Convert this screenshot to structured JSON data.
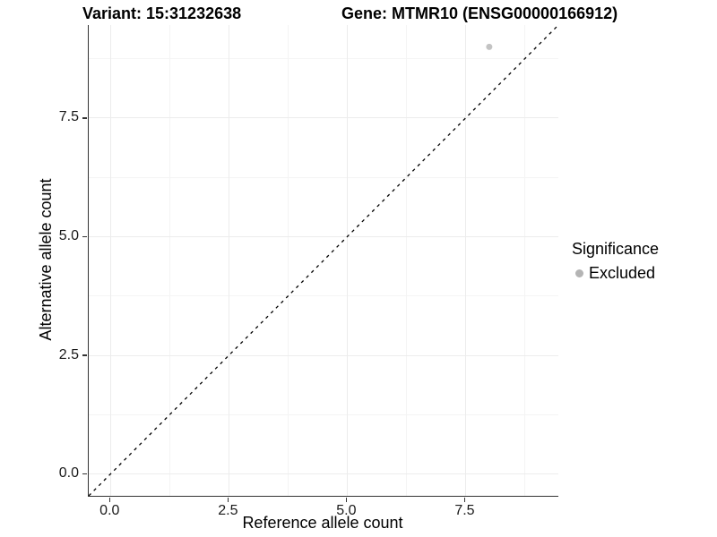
{
  "titles": {
    "variant": "Variant: 15:31232638",
    "gene": "Gene: MTMR10 (ENSG00000166912)"
  },
  "chart_data": {
    "type": "scatter",
    "xlabel": "Reference allele count",
    "ylabel": "Alternative allele count",
    "xlim": [
      -0.46,
      9.46
    ],
    "ylim": [
      -0.46,
      9.46
    ],
    "x_ticks": {
      "values": [
        0,
        2.5,
        5,
        7.5
      ],
      "labels": [
        "0.0",
        "2.5",
        "5.0",
        "7.5"
      ]
    },
    "y_ticks": {
      "values": [
        0,
        2.5,
        5,
        7.5
      ],
      "labels": [
        "0.0",
        "2.5",
        "5.0",
        "7.5"
      ]
    },
    "x_minor_ticks": [
      1.25,
      3.75,
      6.25,
      8.75
    ],
    "y_minor_ticks": [
      1.25,
      3.75,
      6.25,
      8.75
    ],
    "grid": "major+minor",
    "points": [
      {
        "x": 8,
        "y": 9,
        "series": "Excluded"
      }
    ],
    "reference_line": {
      "kind": "identity",
      "equation": "y = x",
      "style": "dashed",
      "color": "#000000"
    },
    "legend": {
      "position": "right",
      "title": "Significance",
      "items": [
        {
          "label": "Excluded",
          "color": "#b4b4b4",
          "shape": "circle"
        }
      ]
    },
    "style": {
      "point_color": "#c3c3c3",
      "point_radius": 3.5,
      "grid_major_color": "#ececec",
      "grid_minor_color": "#f4f4f4",
      "axis_line_color": "#333333",
      "background": "#ffffff"
    }
  }
}
